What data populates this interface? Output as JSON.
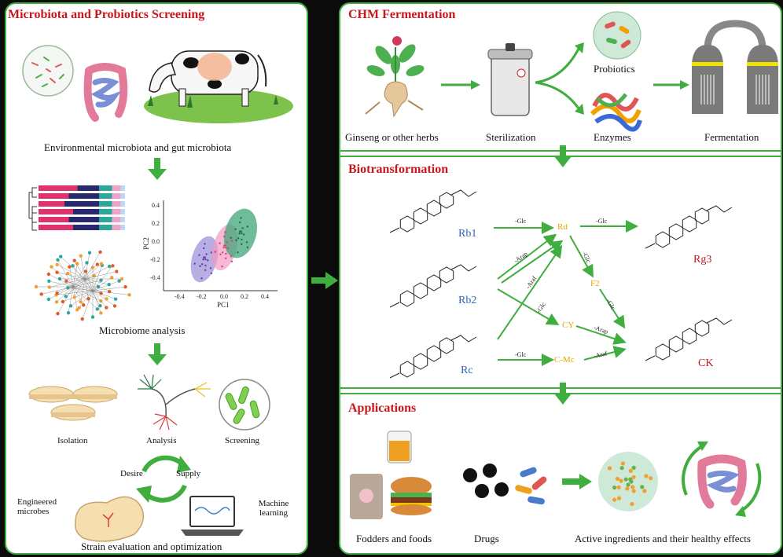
{
  "left_panel": {
    "title": "Microbiota and Probiotics Screening",
    "env_caption": "Environmental microbiota and gut microbiota",
    "microbiome_caption": "Microbiome analysis",
    "pca": {
      "ylabel": "PC2",
      "xlabel": "PC1",
      "yticks": [
        "0.4",
        "0.2",
        "0.0",
        "-0.2",
        "-0.4"
      ],
      "xticks": [
        "-0.4",
        "-0.2",
        "0.0",
        "0.2",
        "0.4"
      ]
    },
    "isolation": "Isolation",
    "analysis": "Analysis",
    "screening": "Screening",
    "desire": "Desire",
    "supply": "Supply",
    "engineered": "Engineered microbes",
    "machine": "Machine learning",
    "strain_caption": "Strain evaluation and optimization"
  },
  "ferment": {
    "title": "CHM Fermentation",
    "ginseng": "Ginseng or other herbs",
    "sterilization": "Sterilization",
    "probiotics": "Probiotics",
    "enzymes": "Enzymes",
    "fermentation": "Fermentation"
  },
  "biotrans": {
    "title": "Biotransformation",
    "compounds": {
      "rb1": "Rb1",
      "rb2": "Rb2",
      "rc": "Rc",
      "rg3": "Rg3",
      "ck": "CK",
      "rd": "Rd",
      "f2": "F2",
      "cy": "CY",
      "cmc": "C-Mc"
    },
    "reactions": {
      "glc1": "-Glc",
      "glc2": "-Glc",
      "arap": "-Arap",
      "araf": "-Araf",
      "glc3": "-Glc",
      "glc4": "-Glc",
      "glc5": "-Glc",
      "glc6": "-Glc",
      "arap2": "-Arap",
      "araf2": "-Araf"
    }
  },
  "applications": {
    "title": "Applications",
    "fodders": "Fodders and foods",
    "drugs": "Drugs",
    "active": "Active ingredients and their healthy effects"
  }
}
